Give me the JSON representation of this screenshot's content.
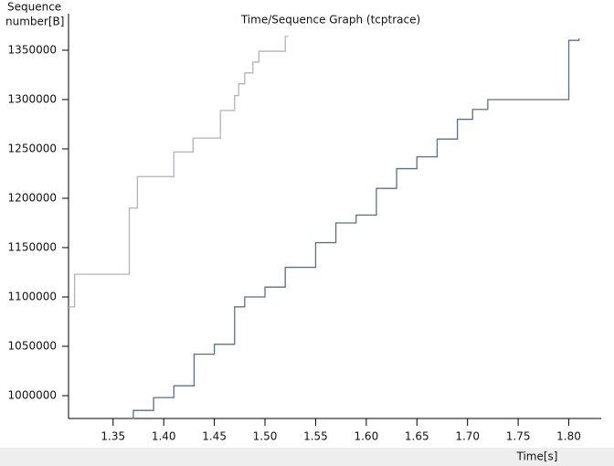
{
  "chart_data": {
    "type": "line",
    "step": true,
    "title": "Time/Sequence Graph (tcptrace)",
    "ylabel": [
      "Sequence",
      "number[B]"
    ],
    "xlabel": "Time[s]",
    "xlim": [
      1.306,
      1.832
    ],
    "ylim": [
      976852,
      1387000
    ],
    "xticks": [
      {
        "value": 1.35,
        "label": "1.35"
      },
      {
        "value": 1.4,
        "label": "1.40"
      },
      {
        "value": 1.45,
        "label": "1.45"
      },
      {
        "value": 1.5,
        "label": "1.50"
      },
      {
        "value": 1.55,
        "label": "1.55"
      },
      {
        "value": 1.6,
        "label": "1.60"
      },
      {
        "value": 1.65,
        "label": "1.65"
      },
      {
        "value": 1.7,
        "label": "1.70"
      },
      {
        "value": 1.75,
        "label": "1.75"
      },
      {
        "value": 1.8,
        "label": "1.80"
      }
    ],
    "yticks": [
      1000000,
      1050000,
      1100000,
      1150000,
      1200000,
      1250000,
      1300000,
      1350000
    ],
    "grid": false,
    "series": [
      {
        "color": "#b0b4b8",
        "x": [
          1.306,
          1.312,
          1.366,
          1.374,
          1.41,
          1.429,
          1.456,
          1.47,
          1.474,
          1.48,
          1.488,
          1.494,
          1.52,
          1.523
        ],
        "values": [
          1090000,
          1123000,
          1190000,
          1222000,
          1247000,
          1261000,
          1289000,
          1304000,
          1316000,
          1327000,
          1338000,
          1349000,
          1364000,
          1364000
        ]
      },
      {
        "color": "#5d6f86",
        "x": [
          1.369,
          1.37,
          1.39,
          1.41,
          1.43,
          1.45,
          1.47,
          1.48,
          1.5,
          1.52,
          1.55,
          1.57,
          1.59,
          1.61,
          1.63,
          1.65,
          1.67,
          1.69,
          1.705,
          1.72,
          1.79,
          1.8,
          1.81
        ],
        "values": [
          977000,
          985000,
          998000,
          1010000,
          1042000,
          1052000,
          1090000,
          1100000,
          1110000,
          1130000,
          1155000,
          1175000,
          1183000,
          1210000,
          1230000,
          1242000,
          1260000,
          1280000,
          1290000,
          1300000,
          1300000,
          1360000,
          1362000
        ]
      }
    ]
  }
}
